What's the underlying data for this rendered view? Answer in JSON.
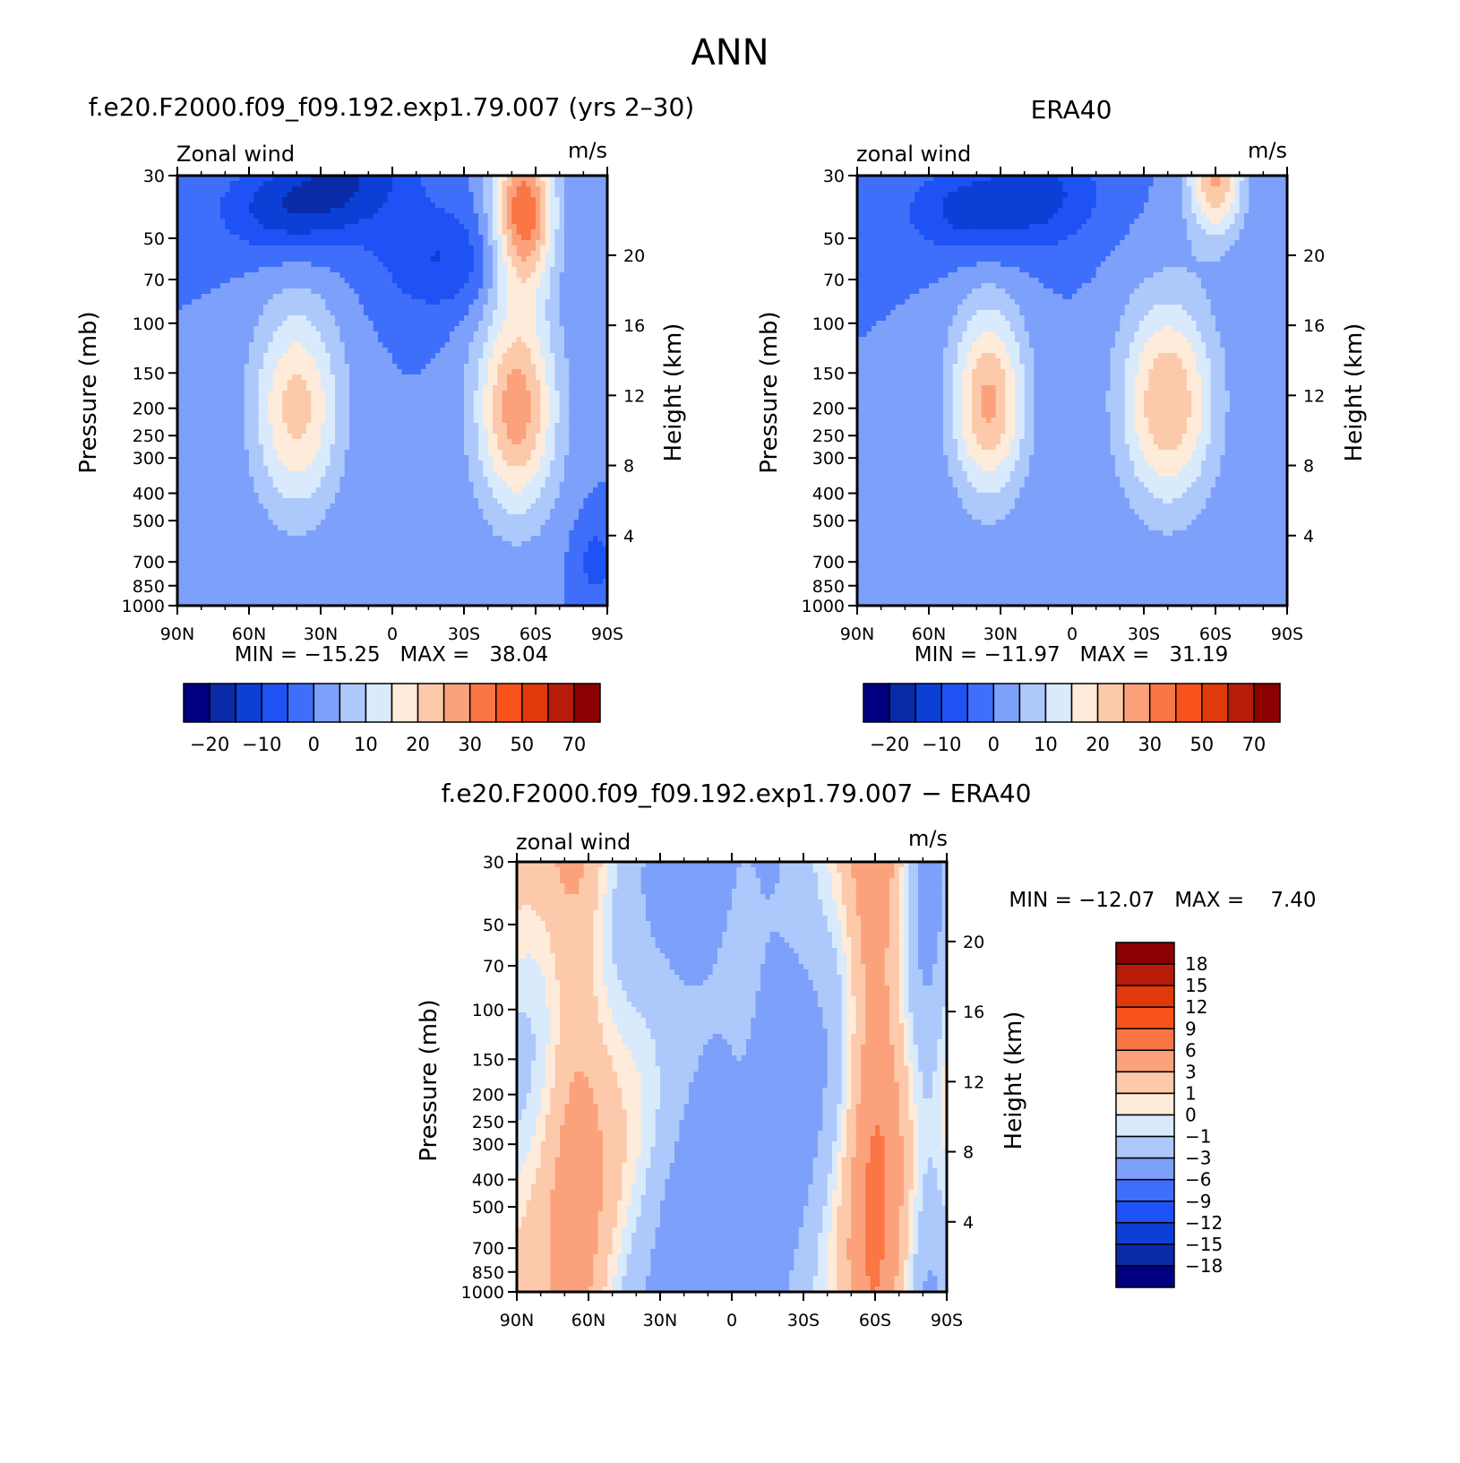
{
  "figure": {
    "title": "ANN"
  },
  "chart_data": [
    {
      "type": "heatmap",
      "title": "f.e20.F2000.f09_f09.192.exp1.79.007 (yrs 2–30)",
      "subtitle_left": "Zonal wind",
      "subtitle_right": "m/s",
      "xlabel": "",
      "ylabel": "Pressure (mb)",
      "ylabel_right": "Height (km)",
      "x_ticks": [
        "90N",
        "60N",
        "30N",
        "0",
        "30S",
        "60S",
        "90S"
      ],
      "y_ticks": [
        30,
        50,
        70,
        100,
        150,
        200,
        250,
        300,
        400,
        500,
        700,
        850,
        1000
      ],
      "y_scale": "log",
      "height_ticks": [
        4,
        8,
        12,
        16,
        20
      ],
      "stats": {
        "label": "MIN = −15.25   MAX =   38.04",
        "min": -15.25,
        "max": 38.04
      },
      "colorbar": {
        "orientation": "horizontal",
        "labels": [
          "−20",
          "−10",
          "0",
          "10",
          "20",
          "30",
          "50",
          "70"
        ]
      },
      "jets": [
        {
          "lat": -45,
          "p": 40,
          "u": -12,
          "w": 20,
          "h": 0.25
        },
        {
          "lat": -18,
          "p": 30,
          "u": -13,
          "w": 20,
          "h": 0.3
        },
        {
          "lat": 20,
          "p": 60,
          "u": -10,
          "w": 18,
          "h": 0.3
        },
        {
          "lat": -40,
          "p": 200,
          "u": 22,
          "w": 13,
          "h": 0.6
        },
        {
          "lat": 55,
          "p": 40,
          "u": 34,
          "w": 9,
          "h": 0.45
        },
        {
          "lat": 52,
          "p": 200,
          "u": 28,
          "w": 12,
          "h": 0.6
        },
        {
          "lat": 85,
          "p": 700,
          "u": -7,
          "w": 6,
          "h": 0.25
        }
      ]
    },
    {
      "type": "heatmap",
      "title": "ERA40",
      "subtitle_left": "zonal wind",
      "subtitle_right": "m/s",
      "xlabel": "",
      "ylabel": "Pressure (mb)",
      "ylabel_right": "Height (km)",
      "x_ticks": [
        "90N",
        "60N",
        "30N",
        "0",
        "30S",
        "60S",
        "90S"
      ],
      "y_ticks": [
        30,
        50,
        70,
        100,
        150,
        200,
        250,
        300,
        400,
        500,
        700,
        850,
        1000
      ],
      "y_scale": "log",
      "height_ticks": [
        4,
        8,
        12,
        16,
        20
      ],
      "stats": {
        "label": "MIN = −11.97   MAX =   31.19",
        "min": -11.97,
        "max": 31.19
      },
      "colorbar": {
        "orientation": "horizontal",
        "labels": [
          "−20",
          "−10",
          "0",
          "10",
          "20",
          "30",
          "50",
          "70"
        ]
      },
      "jets": [
        {
          "lat": -45,
          "p": 40,
          "u": -11,
          "w": 18,
          "h": 0.25
        },
        {
          "lat": -13,
          "p": 35,
          "u": -11,
          "w": 18,
          "h": 0.3
        },
        {
          "lat": -35,
          "p": 190,
          "u": 26,
          "w": 11,
          "h": 0.55
        },
        {
          "lat": 40,
          "p": 190,
          "u": 25,
          "w": 14,
          "h": 0.6
        },
        {
          "lat": 60,
          "p": 30,
          "u": 26,
          "w": 8,
          "h": 0.35
        }
      ]
    },
    {
      "type": "heatmap",
      "title": "f.e20.F2000.f09_f09.192.exp1.79.007 − ERA40",
      "subtitle_left": "zonal wind",
      "subtitle_right": "m/s",
      "xlabel": "",
      "ylabel": "Pressure (mb)",
      "ylabel_right": "Height (km)",
      "x_ticks": [
        "90N",
        "60N",
        "30N",
        "0",
        "30S",
        "60S",
        "90S"
      ],
      "y_ticks": [
        30,
        50,
        70,
        100,
        150,
        200,
        250,
        300,
        400,
        500,
        700,
        850,
        1000
      ],
      "y_scale": "log",
      "height_ticks": [
        4,
        8,
        12,
        16,
        20
      ],
      "stats": {
        "label": "MIN = −12.07   MAX =    7.40",
        "min": -12.07,
        "max": 7.4
      },
      "colorbar": {
        "orientation": "vertical",
        "labels": [
          "18",
          "15",
          "12",
          "9",
          "6",
          "3",
          "1",
          "0",
          "−1",
          "−3",
          "−6",
          "−9",
          "−12",
          "−15",
          "−18"
        ]
      },
      "difference_bands": [
        {
          "lat": -65,
          "u": 3.5,
          "w": 9
        },
        {
          "lat": -15,
          "u": -4,
          "w": 16
        },
        {
          "lat": 5,
          "u": 1,
          "w": 4
        },
        {
          "lat": 20,
          "u": -4,
          "w": 15
        },
        {
          "lat": 60,
          "u": 5.5,
          "w": 8
        },
        {
          "lat": 82,
          "u": -2.5,
          "w": 6
        }
      ]
    }
  ],
  "palette": [
    "#000080",
    "#0a2aa8",
    "#0c3fd6",
    "#1f52f5",
    "#3f6ffa",
    "#7da0fa",
    "#adc8fb",
    "#d8eafc",
    "#feebd9",
    "#fcc9ab",
    "#fba27c",
    "#fb7645",
    "#f8531a",
    "#e03a0b",
    "#b61d09",
    "#8b0000"
  ]
}
